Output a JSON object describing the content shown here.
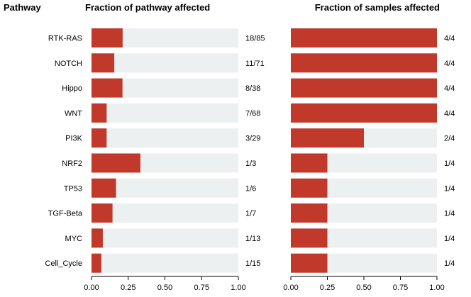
{
  "chart_data": {
    "type": "bar",
    "orientation": "horizontal",
    "title_pathway": "Pathway",
    "title_left": "Fraction of pathway affected",
    "title_right": "Fraction of samples affected",
    "categories": [
      "RTK-RAS",
      "NOTCH",
      "Hippo",
      "WNT",
      "PI3K",
      "NRF2",
      "TP53",
      "TGF-Beta",
      "MYC",
      "Cell_Cycle"
    ],
    "series": [
      {
        "name": "Fraction of pathway affected",
        "values": [
          0.212,
          0.155,
          0.211,
          0.103,
          0.103,
          0.333,
          0.167,
          0.143,
          0.077,
          0.067
        ],
        "labels": [
          "18/85",
          "11/71",
          "8/38",
          "7/68",
          "3/29",
          "1/3",
          "1/6",
          "1/7",
          "1/13",
          "1/15"
        ]
      },
      {
        "name": "Fraction of samples affected",
        "values": [
          1,
          1,
          1,
          1,
          0.5,
          0.25,
          0.25,
          0.25,
          0.25,
          0.25
        ],
        "labels": [
          "4/4",
          "4/4",
          "4/4",
          "4/4",
          "2/4",
          "1/4",
          "1/4",
          "1/4",
          "1/4",
          "1/4"
        ]
      }
    ],
    "xlim": [
      0,
      1
    ],
    "xticks": [
      "0.00",
      "0.25",
      "0.50",
      "0.75",
      "1.00"
    ],
    "bar_color": "#c0392b",
    "track_color": "#ecf0f1"
  }
}
